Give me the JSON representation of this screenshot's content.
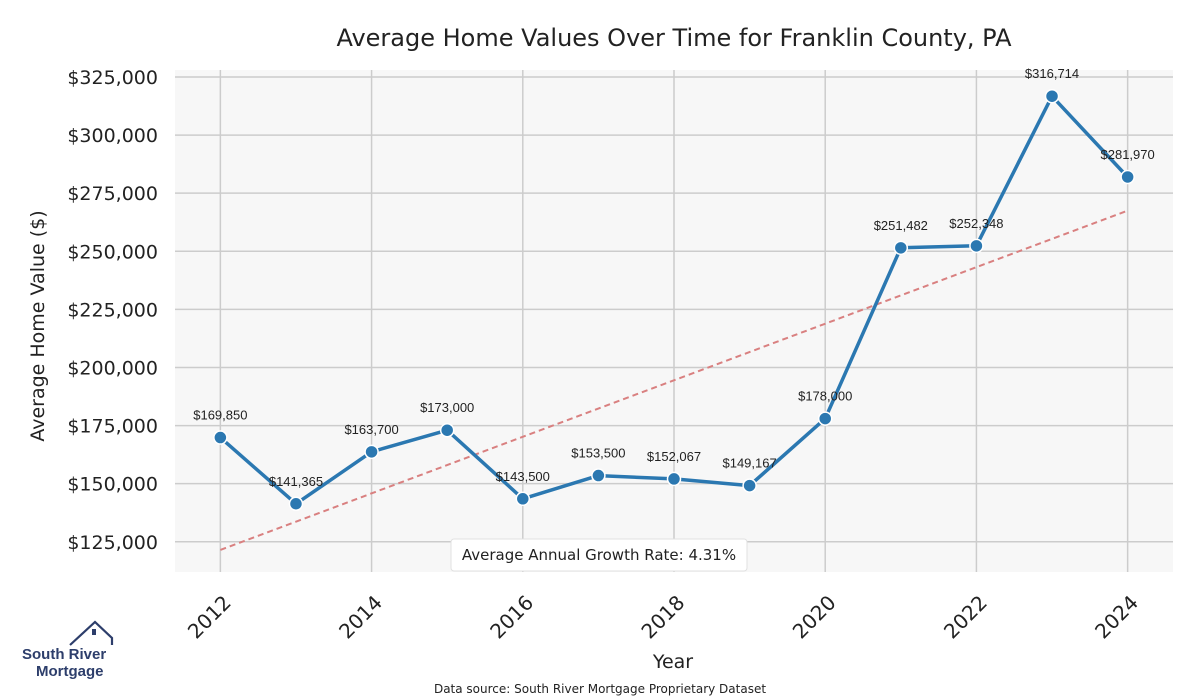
{
  "chart_data": {
    "type": "line",
    "title": "Average Home Values Over Time for Franklin County, PA",
    "xlabel": "Year",
    "ylabel": "Average Home Value ($)",
    "x": [
      2012,
      2013,
      2014,
      2015,
      2016,
      2017,
      2018,
      2019,
      2020,
      2021,
      2022,
      2023,
      2024
    ],
    "series": [
      {
        "values": [
          169850,
          141365,
          163700,
          173000,
          143500,
          153500,
          152067,
          149167,
          178000,
          251482,
          252348,
          316714,
          281970
        ],
        "labels": [
          "$169,850",
          "$141,365",
          "$163,700",
          "$173,000",
          "$143,500",
          "$153,500",
          "$152,067",
          "$149,167",
          "$178,000",
          "$251,482",
          "$252,348",
          "$316,714",
          "$281,970"
        ],
        "color": "#2b78b1"
      }
    ],
    "trend": {
      "start": 121500,
      "end": 267500,
      "color": "#d98080"
    },
    "xticks": [
      2012,
      2014,
      2016,
      2018,
      2020,
      2022,
      2024
    ],
    "xtick_labels": [
      "2012",
      "2014",
      "2016",
      "2018",
      "2020",
      "2022",
      "2024"
    ],
    "yticks": [
      125000,
      150000,
      175000,
      200000,
      225000,
      250000,
      275000,
      300000,
      325000
    ],
    "ytick_labels": [
      "$125,000",
      "$150,000",
      "$175,000",
      "$200,000",
      "$225,000",
      "$250,000",
      "$275,000",
      "$300,000",
      "$325,000"
    ],
    "xlim": [
      2011.4,
      2024.6
    ],
    "ylim": [
      112000,
      328000
    ],
    "grid": true,
    "annotation": "Average Annual Growth Rate: 4.31%",
    "source": "Data source: South River Mortgage Proprietary Dataset"
  },
  "logo": {
    "line1": "South River",
    "line2": "Mortgage"
  }
}
